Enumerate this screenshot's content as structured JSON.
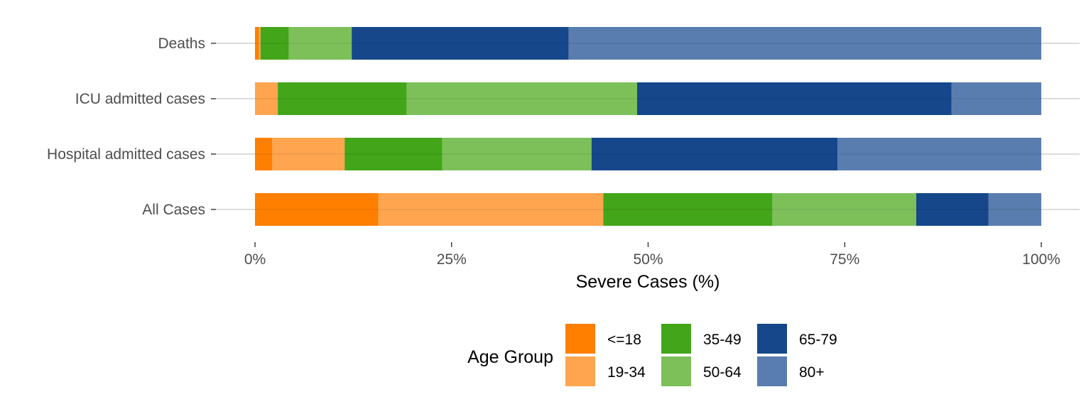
{
  "chart_data": {
    "type": "bar",
    "orientation": "horizontal",
    "stacked": true,
    "categories": [
      "Deaths",
      "ICU admitted cases",
      "Hospital admitted cases",
      "All Cases"
    ],
    "series": [
      {
        "name": "<=18",
        "color": "#FF7F00",
        "values": [
          0.5,
          0.0,
          2.2,
          15.7
        ]
      },
      {
        "name": "19-34",
        "color": "#FFA54F",
        "values": [
          0.2,
          2.9,
          9.2,
          28.6
        ]
      },
      {
        "name": "35-49",
        "color": "#43A519",
        "values": [
          3.6,
          16.4,
          12.4,
          21.5
        ]
      },
      {
        "name": "50-64",
        "color": "#7DC05A",
        "values": [
          8.0,
          29.3,
          19.0,
          18.3
        ]
      },
      {
        "name": "65-79",
        "color": "#15478A",
        "values": [
          27.6,
          40.0,
          31.3,
          9.2
        ]
      },
      {
        "name": "80+",
        "color": "#5A7DAF",
        "values": [
          60.1,
          11.4,
          25.9,
          6.7
        ]
      }
    ],
    "x_ticks": [
      "0%",
      "25%",
      "50%",
      "75%",
      "100%"
    ],
    "x_tick_values": [
      0,
      25,
      50,
      75,
      100
    ],
    "xlim": [
      0,
      100
    ],
    "xlabel": "Severe Cases (%)",
    "ylabel": "",
    "title": "",
    "legend": {
      "title": "Age Group",
      "position": "bottom",
      "columns": 3
    },
    "grid": "horizontal-major"
  }
}
